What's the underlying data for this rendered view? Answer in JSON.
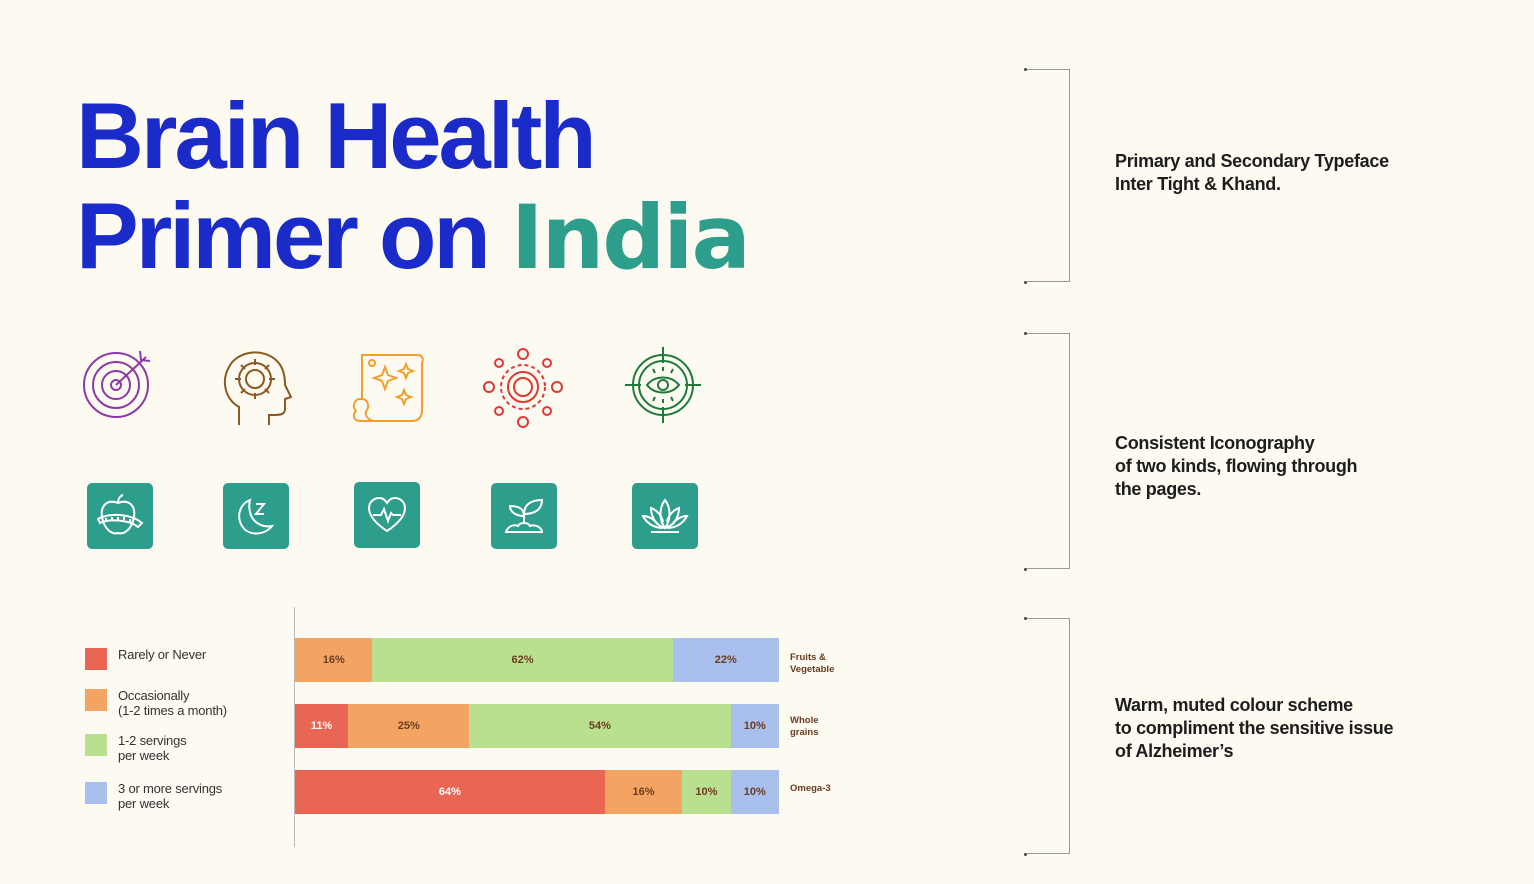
{
  "title": {
    "line1": "Brain Health",
    "line2_prefix": "Primer on ",
    "line2_accent": "India"
  },
  "colors": {
    "primary": "#1a2bc9",
    "accent": "#2e9e8c",
    "rarely": "#e96655",
    "occasionally": "#f3a463",
    "servings12": "#b9e08f",
    "servings3": "#a9bfee"
  },
  "line_icons": [
    "target-icon",
    "head-gear-idea-icon",
    "scroll-sparkles-icon",
    "gear-network-icon",
    "eye-crosshair-icon"
  ],
  "tile_icons": [
    "apple-measuring-tape-icon",
    "sleep-moon-icon",
    "heart-pulse-icon",
    "sprout-icon",
    "lotus-icon"
  ],
  "notes": [
    {
      "lines": [
        "Primary and Secondary Typeface",
        "Inter Tight & Khand."
      ]
    },
    {
      "lines": [
        "Consistent Iconography",
        "of two kinds, flowing through",
        "the pages."
      ]
    },
    {
      "lines": [
        "Warm, muted colour scheme",
        "to compliment the sensitive issue",
        "of Alzheimer’s"
      ]
    }
  ],
  "chart_data": {
    "type": "bar",
    "orientation": "horizontal-stacked-100",
    "legend": [
      {
        "lines": [
          "Rarely or Never"
        ],
        "color": "#e96655"
      },
      {
        "lines": [
          "Occasionally",
          "(1-2 times a month)"
        ],
        "color": "#f3a463"
      },
      {
        "lines": [
          "1-2 servings",
          "per week"
        ],
        "color": "#b9e08f"
      },
      {
        "lines": [
          "3 or more servings",
          "per week"
        ],
        "color": "#a9bfee"
      }
    ],
    "categories": [
      {
        "lines": [
          "Fruits &",
          "Vegetable"
        ]
      },
      {
        "lines": [
          "Whole",
          "grains"
        ]
      },
      {
        "lines": [
          "Omega-3"
        ]
      }
    ],
    "series": [
      {
        "name": "Rarely or Never",
        "values": [
          0,
          11,
          64
        ],
        "labels": [
          "",
          "11%",
          "64%"
        ]
      },
      {
        "name": "Occasionally (1-2 times a month)",
        "values": [
          16,
          25,
          16
        ],
        "labels": [
          "16%",
          "25%",
          "16%"
        ]
      },
      {
        "name": "1-2 servings per week",
        "values": [
          62,
          54,
          10
        ],
        "labels": [
          "62%",
          "54%",
          "10%"
        ]
      },
      {
        "name": "3 or more servings per week",
        "values": [
          22,
          10,
          10
        ],
        "labels": [
          "22%",
          "10%",
          "10%"
        ]
      }
    ]
  }
}
